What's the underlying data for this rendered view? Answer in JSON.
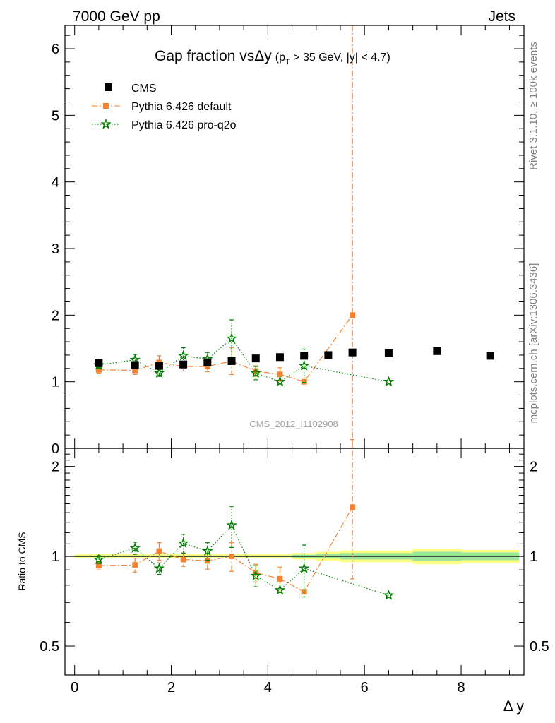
{
  "header": {
    "left": "7000 GeV pp",
    "right": "Jets"
  },
  "side_labels": {
    "rivet": "Rivet 3.1.10, ≥ 100k events",
    "mcplots": "mcplots.cern.ch [arXiv:1306.3436]"
  },
  "watermark": "CMS_2012_I1102908",
  "colors": {
    "cms": "#000000",
    "default": "#f58231",
    "proq2o": "#007f00",
    "band_outer": "#ffff80",
    "band_inner": "#99e599"
  },
  "chart_data": [
    {
      "type": "scatter",
      "title_main": "Gap fraction vs",
      "title_delta": "Δy",
      "title_paren": "(p",
      "title_sub": "T",
      "title_rest": " > 35 GeV, |y| < 4.7)",
      "xlabel": "Δ y",
      "ylabel": "",
      "xlim": [
        -0.2,
        9.3
      ],
      "ylim": [
        0,
        6.35
      ],
      "yticks": [
        0,
        1,
        2,
        3,
        4,
        5,
        6
      ],
      "xticks": [
        0,
        2,
        4,
        6,
        8
      ],
      "legend": [
        "CMS",
        "Pythia 6.426 default",
        "Pythia 6.426 pro-q2o"
      ],
      "series": [
        {
          "name": "CMS",
          "x": [
            0.5,
            1.25,
            1.75,
            2.25,
            2.75,
            3.25,
            3.75,
            4.25,
            4.75,
            5.25,
            5.75,
            6.5,
            7.5,
            8.6
          ],
          "y": [
            1.28,
            1.25,
            1.24,
            1.26,
            1.29,
            1.31,
            1.35,
            1.37,
            1.39,
            1.4,
            1.44,
            1.43,
            1.46,
            1.39
          ]
        },
        {
          "name": "Pythia 6.426 default",
          "x": [
            0.5,
            1.25,
            1.75,
            2.25,
            2.75,
            3.25,
            3.75,
            4.25,
            4.75,
            5.75
          ],
          "y": [
            1.18,
            1.17,
            1.29,
            1.23,
            1.23,
            1.31,
            1.16,
            1.11,
            1.0,
            2.0
          ],
          "yerr": [
            0.05,
            0.06,
            0.1,
            0.07,
            0.08,
            0.2,
            0.08,
            0.1,
            0.0,
            4.5
          ]
        },
        {
          "name": "Pythia 6.426 pro-q2o",
          "x": [
            0.5,
            1.25,
            1.75,
            2.25,
            2.75,
            3.25,
            3.75,
            4.25,
            4.75,
            6.5
          ],
          "y": [
            1.25,
            1.33,
            1.13,
            1.39,
            1.34,
            1.65,
            1.13,
            1.0,
            1.24,
            1.0
          ],
          "yerr": [
            0.05,
            0.08,
            0.05,
            0.12,
            0.1,
            0.28,
            0.1,
            0.0,
            0.25,
            0.0
          ]
        }
      ]
    },
    {
      "type": "scatter",
      "ylabel": "Ratio to CMS",
      "xlim": [
        -0.2,
        9.3
      ],
      "ylim_log": [
        0.4,
        2.3
      ],
      "yticks": [
        0.5,
        1,
        2
      ],
      "ytick_labels": [
        "0.5",
        "1",
        "2"
      ],
      "xticks": [
        0,
        2,
        4,
        6,
        8
      ],
      "xtick_labels": [
        "0",
        "2",
        "4",
        "6",
        "8"
      ],
      "series": [
        {
          "name": "Pythia 6.426 default",
          "x": [
            0.5,
            1.25,
            1.75,
            2.25,
            2.75,
            3.25,
            3.75,
            4.25,
            4.75,
            5.75
          ],
          "y": [
            0.93,
            0.935,
            1.04,
            0.975,
            0.965,
            1.0,
            0.88,
            0.84,
            0.76,
            1.46
          ],
          "yerr_lo": [
            0.03,
            0.05,
            0.07,
            0.05,
            0.06,
            0.11,
            0.06,
            0.08,
            0.0,
            0.62
          ],
          "yerr_hi": [
            0.03,
            0.05,
            0.07,
            0.05,
            0.06,
            0.11,
            0.06,
            0.08,
            0.0,
            1.0
          ]
        },
        {
          "name": "Pythia 6.426 pro-q2o",
          "x": [
            0.5,
            1.25,
            1.75,
            2.25,
            2.75,
            3.25,
            3.75,
            4.25,
            4.75,
            6.5
          ],
          "y": [
            0.975,
            1.065,
            0.91,
            1.105,
            1.04,
            1.27,
            0.86,
            0.77,
            0.91,
            0.74
          ],
          "yerr_lo": [
            0.03,
            0.05,
            0.04,
            0.08,
            0.07,
            0.2,
            0.07,
            0.0,
            0.18,
            0.0
          ],
          "yerr_hi": [
            0.03,
            0.05,
            0.04,
            0.08,
            0.07,
            0.2,
            0.07,
            0.0,
            0.18,
            0.0
          ]
        }
      ],
      "uncertainty_band": [
        {
          "x0": 0.0,
          "x1": 4.5,
          "outer": 0.015,
          "inner": 0.006
        },
        {
          "x0": 4.5,
          "x1": 5.0,
          "outer": 0.025,
          "inner": 0.012
        },
        {
          "x0": 5.0,
          "x1": 5.5,
          "outer": 0.035,
          "inner": 0.018
        },
        {
          "x0": 5.5,
          "x1": 7.0,
          "outer": 0.045,
          "inner": 0.025
        },
        {
          "x0": 7.0,
          "x1": 8.0,
          "outer": 0.06,
          "inner": 0.035
        },
        {
          "x0": 8.0,
          "x1": 9.2,
          "outer": 0.05,
          "inner": 0.03
        }
      ]
    }
  ]
}
